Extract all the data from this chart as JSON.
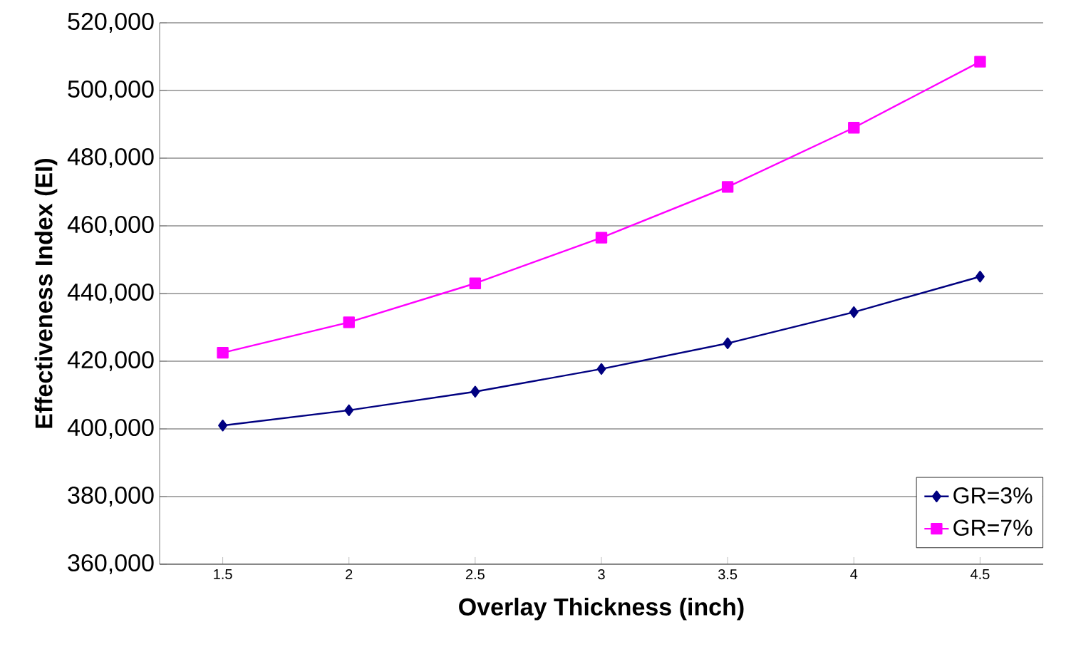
{
  "chart_data": {
    "type": "line",
    "xlabel": "Overlay Thickness (inch)",
    "ylabel": "Effectiveness Index (EI)",
    "categories": [
      "1.5",
      "2",
      "2.5",
      "3",
      "3.5",
      "4",
      "4.5"
    ],
    "series": [
      {
        "name": "GR=3%",
        "color": "#000080",
        "marker": "diamond",
        "values": [
          401000,
          405500,
          411000,
          417700,
          425300,
          434500,
          445000
        ]
      },
      {
        "name": "GR=7%",
        "color": "#ff00ff",
        "marker": "square",
        "values": [
          422500,
          431500,
          443000,
          456500,
          471500,
          489000,
          508500
        ]
      }
    ],
    "ylim": [
      360000,
      520000
    ],
    "yticks": [
      {
        "value": 360000,
        "label": "360,000"
      },
      {
        "value": 380000,
        "label": "380,000"
      },
      {
        "value": 400000,
        "label": "400,000"
      },
      {
        "value": 420000,
        "label": "420,000"
      },
      {
        "value": 440000,
        "label": "440,000"
      },
      {
        "value": 460000,
        "label": "460,000"
      },
      {
        "value": 480000,
        "label": "480,000"
      },
      {
        "value": 500000,
        "label": "500,000"
      },
      {
        "value": 520000,
        "label": "520,000"
      }
    ],
    "grid": "y",
    "legend": "bottom right",
    "line_style": "solid"
  }
}
